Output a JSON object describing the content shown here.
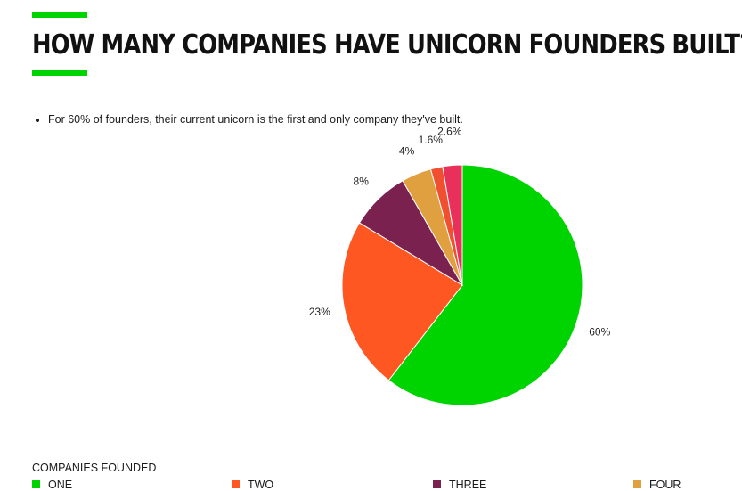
{
  "header": {
    "title": "HOW MANY COMPANIES HAVE UNICORN FOUNDERS BUILT?",
    "accent_color": "#00d400"
  },
  "notes": [
    "For 60% of founders, their current unicorn is the first and only company they've built."
  ],
  "chart_data": {
    "type": "pie",
    "title": "",
    "legend_title": "COMPANIES FOUNDED",
    "legend_position": "bottom",
    "slices": [
      {
        "name": "ONE",
        "value": 60,
        "label": "60%",
        "color": "#00d400"
      },
      {
        "name": "TWO",
        "value": 23,
        "label": "23%",
        "color": "#ff5722"
      },
      {
        "name": "THREE",
        "value": 8,
        "label": "8%",
        "color": "#7b2150"
      },
      {
        "name": "FOUR",
        "value": 4,
        "label": "4%",
        "color": "#e0a040"
      },
      {
        "name": "",
        "value": 1.6,
        "label": "1.6%",
        "color": "#f05030"
      },
      {
        "name": "",
        "value": 2.6,
        "label": "2.6%",
        "color": "#e8305a"
      }
    ]
  }
}
